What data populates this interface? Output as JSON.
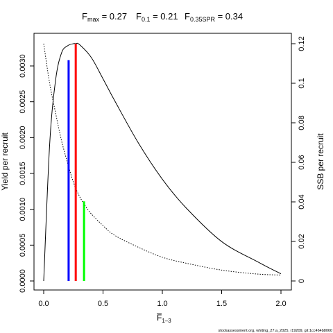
{
  "title": {
    "fmax_label": "F",
    "fmax_sub": "max",
    "fmax_value": " = 0.27",
    "f01_label": "F",
    "f01_sub": "0.1",
    "f01_value": " = 0.21",
    "fspr_label": "F",
    "fspr_sub": "0.35SPR",
    "fspr_value": " = 0.34"
  },
  "footer": "stockassessment.org, whiting_27.a_2025, r19209, git:1cc464b8060",
  "chart_data": {
    "type": "line",
    "xlabel": "F",
    "xlabel_sub": "1–3",
    "ylabel_left": "Yield per recruit",
    "ylabel_right": "SSB per recruit",
    "xlim": [
      0,
      2
    ],
    "ylim_left": [
      0,
      0.0033
    ],
    "ylim_right": [
      0,
      0.121
    ],
    "x_ticks": [
      0,
      0.5,
      1,
      1.5,
      2
    ],
    "x_tick_labels": [
      "0.0",
      "0.5",
      "1.0",
      "1.5",
      "2.0"
    ],
    "y_left_ticks": [
      0,
      0.0005,
      0.001,
      0.0015,
      0.002,
      0.0025,
      0.003
    ],
    "y_left_tick_labels": [
      "0.0000",
      "0.0005",
      "0.0010",
      "0.0015",
      "0.0020",
      "0.0025",
      "0.0030"
    ],
    "y_right_ticks": [
      0,
      0.02,
      0.04,
      0.06,
      0.08,
      0.1,
      0.12
    ],
    "y_right_tick_labels": [
      "0",
      "0.02",
      "0.04",
      "0.06",
      "0.08",
      "0.1",
      "0.12"
    ],
    "series": [
      {
        "axis": "left",
        "style": "solid",
        "color": "#000000",
        "x": [
          0,
          0.05,
          0.1,
          0.15,
          0.2,
          0.25,
          0.27,
          0.3,
          0.4,
          0.5,
          0.6,
          0.8,
          1.0,
          1.2,
          1.5,
          1.8,
          2.0
        ],
        "y": [
          0,
          0.0019,
          0.0028,
          0.00318,
          0.00328,
          0.00331,
          0.00331,
          0.0033,
          0.00312,
          0.00282,
          0.00251,
          0.00192,
          0.00142,
          0.00102,
          0.00055,
          0.00027,
          0.0001
        ]
      },
      {
        "axis": "right",
        "style": "dotted",
        "color": "#000000",
        "x": [
          0,
          0.05,
          0.1,
          0.15,
          0.2,
          0.25,
          0.3,
          0.35,
          0.4,
          0.5,
          0.6,
          0.8,
          1.0,
          1.2,
          1.5,
          1.8,
          2.0
        ],
        "y": [
          0.12,
          0.1,
          0.085,
          0.071,
          0.06,
          0.05,
          0.043,
          0.038,
          0.034,
          0.028,
          0.023,
          0.017,
          0.012,
          0.009,
          0.0055,
          0.0035,
          0.003
        ]
      }
    ],
    "ref_lines": [
      {
        "name": "F0.1",
        "x": 0.21,
        "y_left": 0.00308,
        "color": "#0000ff"
      },
      {
        "name": "Fmax",
        "x": 0.27,
        "y_left": 0.00331,
        "color": "#ff0000"
      },
      {
        "name": "F0.35SPR",
        "x": 0.34,
        "y_left": 0.00111,
        "color": "#00ff00"
      }
    ]
  }
}
